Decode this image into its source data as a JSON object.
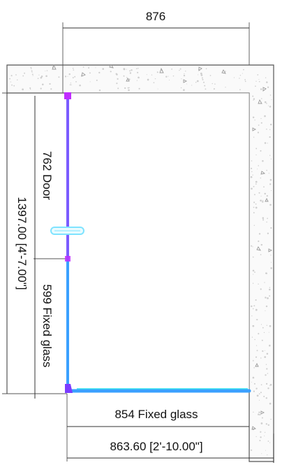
{
  "dimensions": {
    "top_width": "876",
    "left_overall_height": "1397.00 [4'-7.00\"]",
    "door_label": "762  Door",
    "side_fixed_label": "599  Fixed glass",
    "bottom_fixed_label": "854  Fixed glass",
    "bottom_overall_width": "863.60 [2'-10.00\"]"
  },
  "colors": {
    "wall_outline": "#555555",
    "concrete_speck": "#cfcfcf",
    "glass_door": "#7b5cff",
    "door_handle": "#7fe3ff",
    "fixed_glass": "#3aa0ff",
    "fixed_glass_highlight": "#35e0f0",
    "joint_marker": "#c02cff",
    "dimension_line": "#333333"
  },
  "icons": {
    "door_handle": "door-handle-icon",
    "corner_joint": "corner-joint-icon"
  }
}
